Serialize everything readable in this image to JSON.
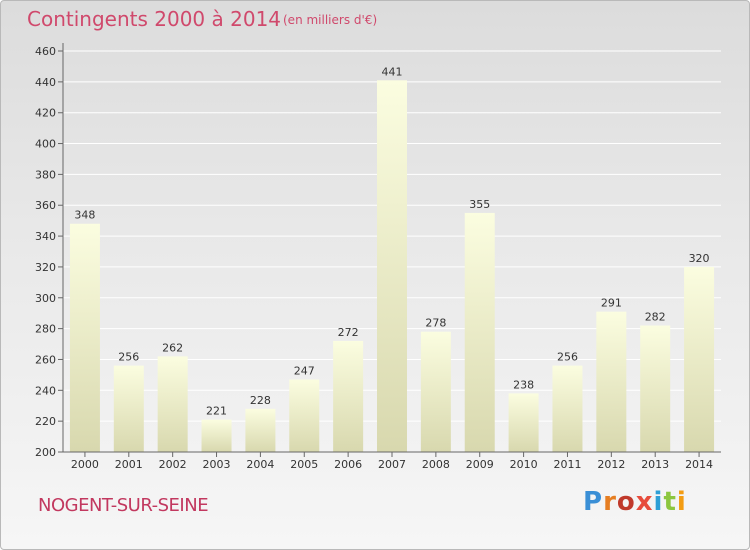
{
  "header": {
    "title": "Contingents 2000 à 2014",
    "unit": "(en milliers d'€)"
  },
  "footer": {
    "place": "NOGENT-SUR-SEINE",
    "logo_text": "Proxiti",
    "logo_colors": [
      "#3a8fd6",
      "#e67e22",
      "#c0392b",
      "#e74c3c",
      "#2e9fd6",
      "#8cc63f",
      "#f39c12"
    ]
  },
  "colors": {
    "title": "#d0496c",
    "bar_top": "#fbfde0",
    "bar_bottom": "#d8d8ae",
    "axis": "#666666",
    "grid": "#ffffff",
    "label": "#333333"
  },
  "chart_data": {
    "type": "bar",
    "title": "Contingents 2000 à 2014",
    "subtitle": "(en milliers d'€)",
    "categories": [
      "2000",
      "2001",
      "2002",
      "2003",
      "2004",
      "2005",
      "2006",
      "2007",
      "2008",
      "2009",
      "2010",
      "2011",
      "2012",
      "2013",
      "2014"
    ],
    "values": [
      348,
      256,
      262,
      221,
      228,
      247,
      272,
      441,
      278,
      355,
      238,
      256,
      291,
      282,
      320
    ],
    "ylim": [
      200,
      460
    ],
    "yticks": [
      200,
      220,
      240,
      260,
      280,
      300,
      320,
      340,
      360,
      380,
      400,
      420,
      440,
      460
    ],
    "grid": true,
    "data_labels": true
  }
}
